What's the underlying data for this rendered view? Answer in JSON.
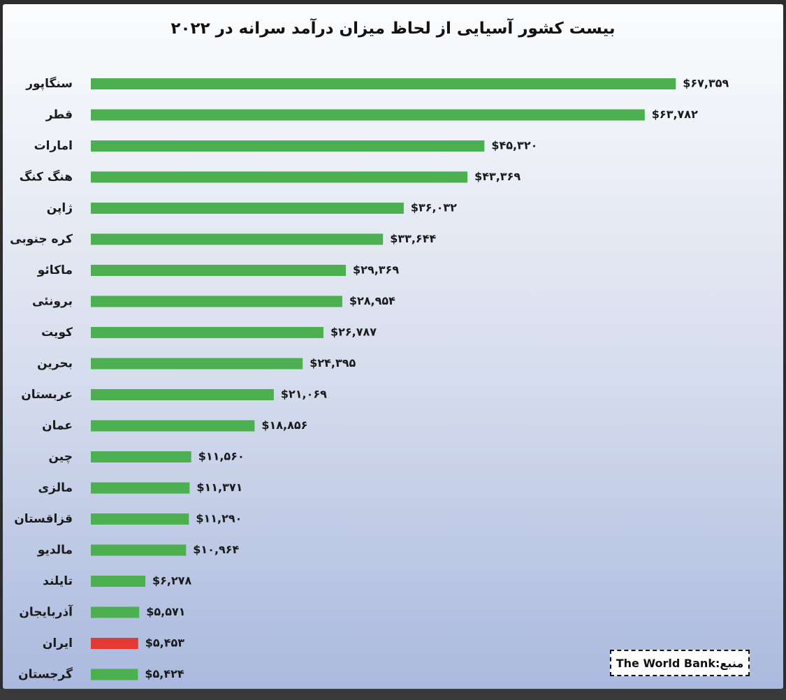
{
  "chart_data": {
    "type": "bar",
    "orientation": "horizontal",
    "title": "بیست کشور آسیایی از لحاظ میزان درآمد سرانه در ۲۰۲۲",
    "xlabel": "",
    "ylabel": "",
    "xlim": [
      0,
      70000
    ],
    "grid": false,
    "legend": "none",
    "categories": [
      "سنگاپور",
      "قطر",
      "امارات",
      "هنگ کنگ",
      "ژاپن",
      "کره جنوبی",
      "ماکائو",
      "برونئی",
      "کویت",
      "بحرین",
      "عربستان",
      "عمان",
      "چین",
      "مالزی",
      "قزاقستان",
      "مالدیو",
      "تایلند",
      "آذربایجان",
      "ایران",
      "گرجستان"
    ],
    "values": [
      67359,
      63782,
      45320,
      43369,
      36032,
      33644,
      29369,
      28954,
      26787,
      24395,
      21069,
      18856,
      11560,
      11371,
      11290,
      10964,
      6278,
      5571,
      5453,
      5424
    ],
    "value_labels": [
      "$۶۷,۳۵۹",
      "$۶۳,۷۸۲",
      "$۴۵,۳۲۰",
      "$۴۳,۳۶۹",
      "$۳۶,۰۳۲",
      "$۳۳,۶۴۴",
      "$۲۹,۳۶۹",
      "$۲۸,۹۵۴",
      "$۲۶,۷۸۷",
      "$۲۴,۳۹۵",
      "$۲۱,۰۶۹",
      "$۱۸,۸۵۶",
      "$۱۱,۵۶۰",
      "$۱۱,۳۷۱",
      "$۱۱,۲۹۰",
      "$۱۰,۹۶۴",
      "$۶,۲۷۸",
      "$۵,۵۷۱",
      "$۵,۴۵۳",
      "$۵,۴۲۴"
    ],
    "bar_color": "#4caf50",
    "highlight_color": "#e53935",
    "highlight_category": "ایران"
  },
  "source": {
    "label": "منبع:",
    "name": "The World Bank"
  }
}
